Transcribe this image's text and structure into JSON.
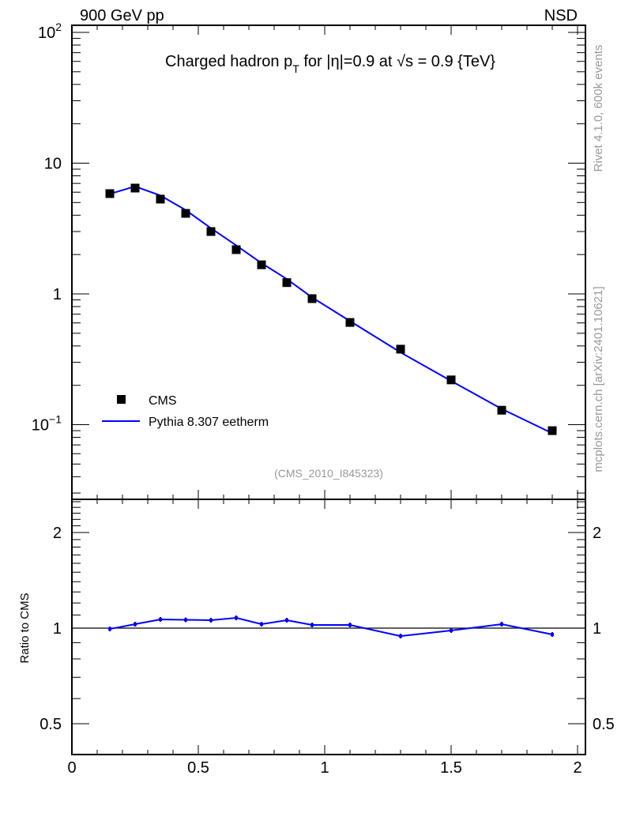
{
  "header": {
    "left": "900 GeV pp",
    "right": "NSD"
  },
  "side_labels": {
    "rivet": "Rivet 4.1.0,  600k events",
    "mcplots": "mcplots.cern.ch [arXiv:2401.10621]"
  },
  "colors": {
    "data": "#000000",
    "mc": "#0000ff",
    "watermark": "#999999"
  },
  "chart_data": [
    {
      "type": "scatter",
      "title": "Charged hadron p_T for |η|=0.9 at √s = 0.9 {TeV}",
      "title_parts": {
        "a": "Charged hadron p",
        "sub": "T",
        "b": " for |η|=0.9 at √s = 0.9 {TeV}"
      },
      "analysis_tag": "(CMS_2010_I845323)",
      "yscale": "log",
      "xlim": [
        0,
        2.03
      ],
      "ylim": [
        0.027,
        115
      ],
      "x_ticks": [
        "0",
        "0.5",
        "1",
        "1.5",
        "2"
      ],
      "y_tick_labels": [
        {
          "v": 100,
          "label": "10",
          "sup": "2"
        },
        {
          "v": 10,
          "label": "10",
          "sup": ""
        },
        {
          "v": 1,
          "label": "1",
          "sup": ""
        },
        {
          "v": 0.1,
          "label": "10",
          "sup": "−1"
        }
      ],
      "legend": {
        "position": "bottom-left",
        "entries": [
          "CMS",
          "Pythia 8.307 eetherm"
        ]
      },
      "x": [
        0.15,
        0.25,
        0.35,
        0.45,
        0.55,
        0.65,
        0.75,
        0.85,
        0.95,
        1.1,
        1.3,
        1.5,
        1.7,
        1.9
      ],
      "series": [
        {
          "name": "CMS",
          "values": [
            5.85,
            6.45,
            5.31,
            4.13,
            3.0,
            2.18,
            1.67,
            1.22,
            0.92,
            0.605,
            0.378,
            0.22,
            0.129,
            0.09
          ]
        },
        {
          "name": "Pythia 8.307 eetherm",
          "values": [
            5.82,
            6.64,
            5.66,
            4.38,
            3.18,
            2.35,
            1.72,
            1.3,
            0.94,
            0.62,
            0.357,
            0.216,
            0.132,
            0.086
          ]
        }
      ]
    },
    {
      "type": "line",
      "ylabel": "Ratio to CMS",
      "yscale": "log",
      "xlim": [
        0,
        2.03
      ],
      "ylim": [
        0.4,
        2.54
      ],
      "y_ticks": [
        "2",
        "1",
        "0.5"
      ],
      "x": [
        0.15,
        0.25,
        0.35,
        0.45,
        0.55,
        0.65,
        0.75,
        0.85,
        0.95,
        1.1,
        1.3,
        1.5,
        1.7,
        1.9
      ],
      "series": [
        {
          "name": "Pythia 8.307 eetherm / CMS",
          "values": [
            0.994,
            1.029,
            1.065,
            1.062,
            1.059,
            1.077,
            1.029,
            1.059,
            1.023,
            1.023,
            0.944,
            0.983,
            1.029,
            0.955
          ]
        }
      ]
    }
  ]
}
